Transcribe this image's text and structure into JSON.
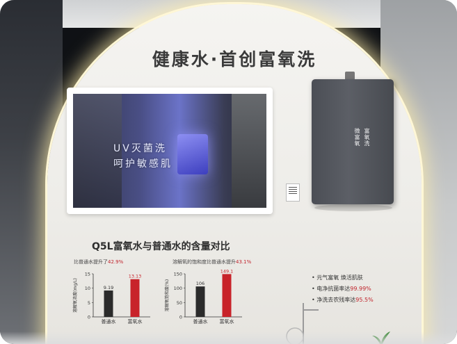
{
  "headline": "健康水·首创富氧洗",
  "tv": {
    "line1": "UV灭菌洗",
    "line2": "呵护敏感肌",
    "sub": "————————————"
  },
  "heater": {
    "brand": "",
    "vertical_text": [
      "微富氧",
      "富氧洗"
    ]
  },
  "comparison": {
    "title": "Q5L富氧水与普通水的含量对比",
    "left": {
      "caption_prefix": "比普通水提升了",
      "caption_pct": "42.9%",
      "ylabel": "溶解氧浓度(mg/L)",
      "yticks": [
        "15",
        "10",
        "5",
        "0"
      ]
    },
    "right": {
      "caption_prefix": "溶解氧的饱和度比普通水提升",
      "caption_pct": "43.1%",
      "ylabel": "溶解氧饱和度(%)",
      "yticks": [
        "150",
        "100",
        "50",
        "0"
      ]
    }
  },
  "chart_data": [
    {
      "type": "bar",
      "title": "",
      "categories": [
        "普通水",
        "富氧水"
      ],
      "values": [
        9.19,
        13.13
      ],
      "ylabel": "溶解氧浓度(mg/L)",
      "ylim": [
        0,
        15
      ],
      "colors": [
        "#2b2b2b",
        "#c8232a"
      ]
    },
    {
      "type": "bar",
      "title": "",
      "categories": [
        "普通水",
        "富氧水"
      ],
      "values": [
        106,
        149.1
      ],
      "ylabel": "溶解氧饱和度(%)",
      "ylim": [
        0,
        150
      ],
      "colors": [
        "#2b2b2b",
        "#c8232a"
      ]
    }
  ],
  "bullets": [
    {
      "text": "元气富氧  焕活肌肤",
      "hl": ""
    },
    {
      "text": "电净抗菌率达",
      "hl": "99.99%"
    },
    {
      "text": "净洗去农残率达",
      "hl": "95.5%"
    }
  ]
}
